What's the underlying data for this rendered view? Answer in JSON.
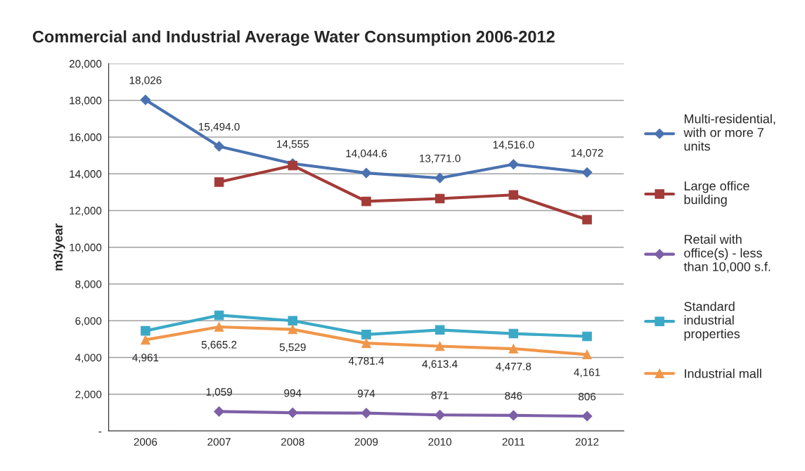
{
  "chart_data": {
    "type": "line",
    "title": "Commercial and Industrial Average Water Consumption 2006-2012",
    "ylabel": "m3/year",
    "categories": [
      "2006",
      "2007",
      "2008",
      "2009",
      "2010",
      "2011",
      "2012"
    ],
    "series": [
      {
        "name": "Multi-residential, with or more 7 units",
        "color": "#4a72b0",
        "marker": "diamond",
        "values": [
          18026,
          15494.0,
          14555,
          14044.6,
          13771.0,
          14516.0,
          14072
        ],
        "value_labels": [
          "18,026",
          "15,494.0",
          "14,555",
          "14,044.6",
          "13,771.0",
          "14,516.0",
          "14,072"
        ]
      },
      {
        "name": "Large office building",
        "color": "#a33b38",
        "marker": "square",
        "values": [
          null,
          13550,
          14450,
          12500,
          12650,
          12850,
          11500
        ]
      },
      {
        "name": "Retail with office(s) - less than 10,000 s.f.",
        "color": "#7d5fa6",
        "marker": "diamond",
        "values": [
          null,
          1059,
          994,
          974,
          871,
          846,
          806
        ],
        "value_labels": [
          null,
          "1,059",
          "994",
          "974",
          "871",
          "846",
          "806"
        ]
      },
      {
        "name": "Standard industrial properties",
        "color": "#3ba9c6",
        "marker": "square",
        "values": [
          5450,
          6300,
          6000,
          5250,
          5500,
          5300,
          5150
        ]
      },
      {
        "name": "Industrial mall",
        "color": "#f0964a",
        "marker": "triangle",
        "values": [
          4961,
          5665.2,
          5529,
          4781.4,
          4613.4,
          4477.8,
          4161
        ],
        "value_labels": [
          "4,961",
          "5,665.2",
          "5,529",
          "4,781.4",
          "4,613.4",
          "4,477.8",
          "4,161"
        ]
      }
    ],
    "ylim": [
      0,
      20000
    ],
    "yticks": [
      {
        "value": 0,
        "label": "-"
      },
      {
        "value": 2000,
        "label": "2,000"
      },
      {
        "value": 4000,
        "label": "4,000"
      },
      {
        "value": 6000,
        "label": "6,000"
      },
      {
        "value": 8000,
        "label": "8,000"
      },
      {
        "value": 10000,
        "label": "10,000"
      },
      {
        "value": 12000,
        "label": "12,000"
      },
      {
        "value": 14000,
        "label": "14,000"
      },
      {
        "value": 16000,
        "label": "16,000"
      },
      {
        "value": 18000,
        "label": "18,000"
      },
      {
        "value": 20000,
        "label": "20,000"
      }
    ],
    "grid": "y",
    "legend": "right",
    "line_style": "solid"
  }
}
